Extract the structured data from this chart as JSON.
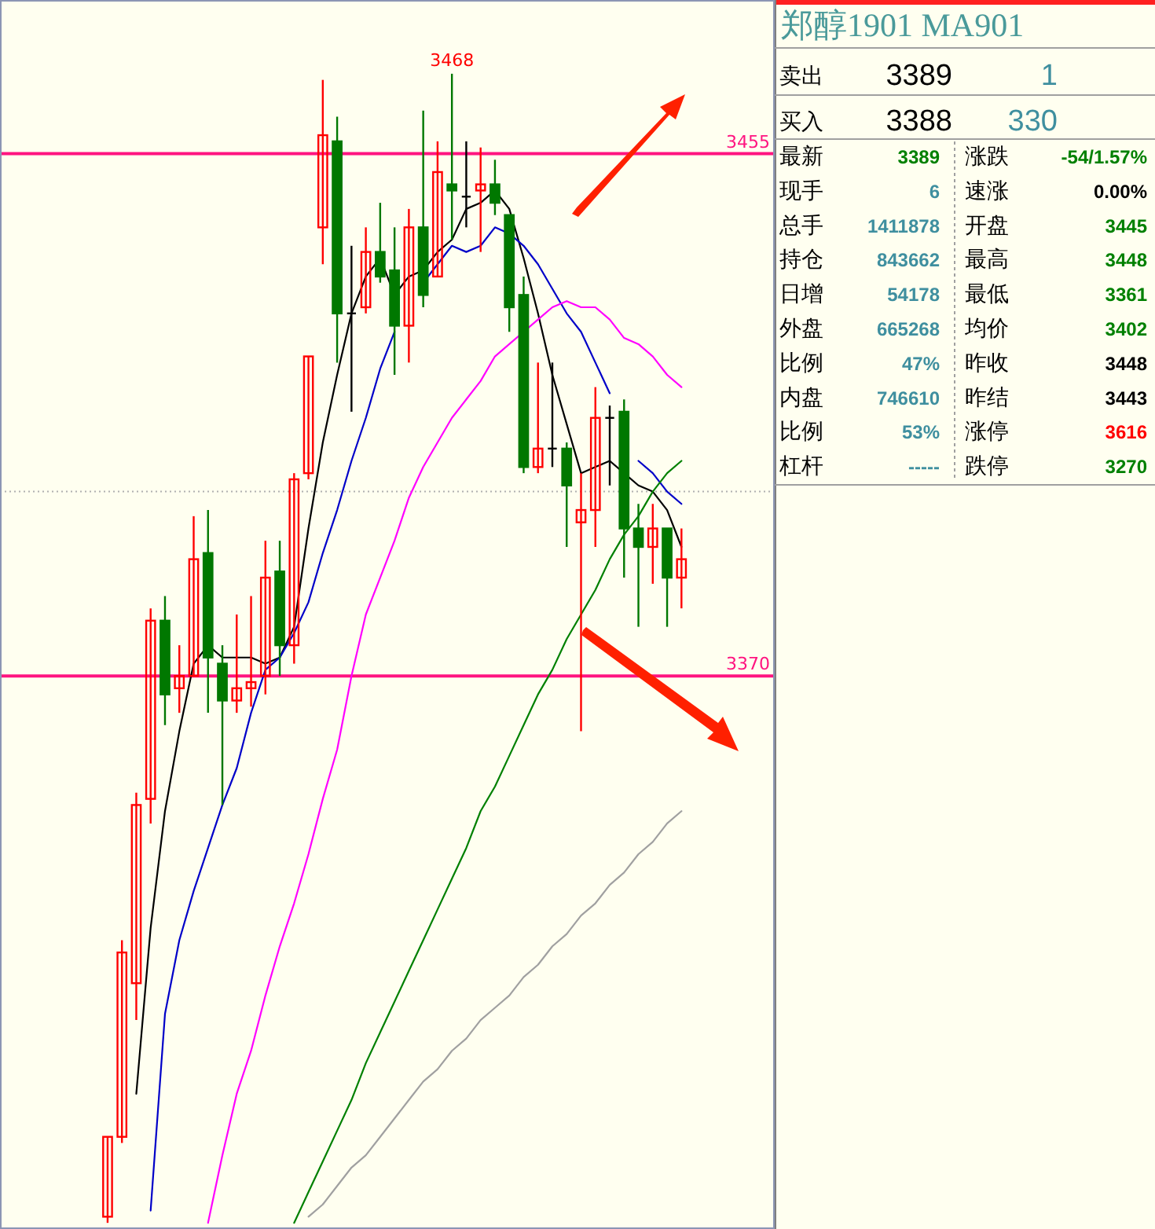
{
  "chart_data": [
    {
      "type": "candlestick",
      "ylim": [
        3280,
        3480
      ],
      "categories": [
        null,
        null,
        null,
        null,
        null,
        null,
        null,
        null,
        null,
        null,
        null,
        null,
        null,
        null,
        null,
        null,
        null,
        null,
        null,
        null,
        null,
        null,
        null,
        null,
        null,
        null,
        null,
        null,
        null,
        null,
        null,
        null,
        null,
        null,
        null,
        null,
        null,
        null,
        null,
        null,
        null
      ],
      "ohlc": [
        [
          3282,
          3295,
          3281,
          3295
        ],
        [
          3295,
          3327,
          3294,
          3325
        ],
        [
          3320,
          3351,
          3314,
          3349
        ],
        [
          3350,
          3381,
          3346,
          3379
        ],
        [
          3379,
          3383,
          3362,
          3367
        ],
        [
          3368,
          3375,
          3364,
          3370
        ],
        [
          3370,
          3396,
          3370,
          3389
        ],
        [
          3390,
          3397,
          3364,
          3373
        ],
        [
          3372,
          3375,
          3349,
          3366
        ],
        [
          3366,
          3380,
          3364,
          3368
        ],
        [
          3368,
          3383,
          3365,
          3369
        ],
        [
          3370,
          3392,
          3367,
          3386
        ],
        [
          3387,
          3392,
          3370,
          3375
        ],
        [
          3375,
          3403,
          3372,
          3402
        ],
        [
          3403,
          3422,
          3402,
          3422
        ],
        [
          3443,
          3467,
          3437,
          3458
        ],
        [
          3457,
          3461,
          3421,
          3429
        ],
        [
          3429,
          3440,
          3413,
          3429
        ],
        [
          3430,
          3443,
          3429,
          3439
        ],
        [
          3439,
          3447,
          3434,
          3435
        ],
        [
          3436,
          3443,
          3419,
          3427
        ],
        [
          3427,
          3446,
          3421,
          3443
        ],
        [
          3443,
          3462,
          3430,
          3432
        ],
        [
          3435,
          3457,
          3435,
          3452
        ],
        [
          3450,
          3468,
          3441,
          3449
        ],
        [
          3448,
          3457,
          3443,
          3448
        ],
        [
          3449,
          3456,
          3439,
          3450
        ],
        [
          3450,
          3454,
          3445,
          3447
        ],
        [
          3445,
          3445,
          3426,
          3430
        ],
        [
          3432,
          3435,
          3403,
          3404
        ],
        [
          3404,
          3421,
          3403,
          3407
        ],
        [
          3407,
          3421,
          3404,
          3407
        ],
        [
          3407,
          3408,
          3391,
          3401
        ],
        [
          3395,
          3403,
          3361,
          3397
        ],
        [
          3397,
          3417,
          3391,
          3412
        ],
        [
          3412,
          3414,
          3401,
          3412
        ],
        [
          3413,
          3415,
          3386,
          3394
        ],
        [
          3394,
          3398,
          3378,
          3391
        ],
        [
          3391,
          3398,
          3385,
          3394
        ],
        [
          3394,
          3394,
          3378,
          3386
        ],
        [
          3386,
          3394,
          3381,
          3389
        ]
      ],
      "colors": [
        "#ff0000",
        "#ff0000",
        "#ff0000",
        "#ff0000",
        "#007800",
        "#ff0000",
        "#ff0000",
        "#007800",
        "#007800",
        "#ff0000",
        "#ff0000",
        "#ff0000",
        "#007800",
        "#ff0000",
        "#ff0000",
        "#ff0000",
        "#007800",
        "#000000",
        "#ff0000",
        "#007800",
        "#007800",
        "#ff0000",
        "#007800",
        "#ff0000",
        "#007800",
        "#000000",
        "#ff0000",
        "#007800",
        "#007800",
        "#007800",
        "#ff0000",
        "#000000",
        "#007800",
        "#ff0000",
        "#ff0000",
        "#000000",
        "#007800",
        "#007800",
        "#ff0000",
        "#007800",
        "#ff0000"
      ],
      "series": [
        {
          "type": "line",
          "color": "#000000",
          "values": [
            null,
            null,
            3302,
            3329,
            3348,
            3361,
            3372,
            3375,
            3373,
            3373,
            3373,
            3372,
            3373,
            3378,
            3394,
            3408,
            3419,
            3429,
            3435,
            3438,
            3432,
            3435,
            3436,
            3439,
            3441,
            3446,
            3447,
            3449,
            3446,
            3438,
            3429,
            3419,
            3411,
            3403,
            3404,
            3405,
            3403,
            3401,
            3400,
            3397,
            3391
          ]
        },
        {
          "type": "line",
          "color": "#0000c8",
          "values": [
            null,
            null,
            null,
            3283,
            3315,
            3327,
            3335,
            3342,
            3349,
            3355,
            3364,
            3371,
            3373,
            3377,
            3382,
            3390,
            3397,
            3405,
            3412,
            3420,
            3426,
            null,
            3434,
            3437,
            3440,
            3439,
            3440,
            3443,
            3442,
            3440,
            3437,
            3433,
            3429,
            3426,
            3421,
            3416,
            null,
            3405,
            3403,
            3400,
            3398
          ]
        },
        {
          "type": "line",
          "color": "#ff00ff",
          "values": [
            null,
            null,
            null,
            null,
            null,
            null,
            null,
            3281,
            3292,
            3302,
            3309,
            3318,
            3326,
            3333,
            3341,
            3350,
            3358,
            3370,
            3380,
            3386,
            3392,
            3399,
            3404,
            3408,
            3412,
            3415,
            3418,
            3422,
            3424,
            3426,
            3428,
            3430,
            3431,
            3430,
            3430,
            3428,
            3425,
            3424,
            3422,
            3419,
            3417
          ]
        },
        {
          "type": "line",
          "color": "#008000",
          "values": [
            null,
            null,
            null,
            null,
            null,
            null,
            null,
            null,
            null,
            null,
            null,
            null,
            null,
            3281,
            3286,
            3291,
            3296,
            3301,
            3307,
            3312,
            3317,
            3322,
            3327,
            3332,
            3337,
            3342,
            3348,
            3352,
            3357,
            3362,
            3367,
            3371,
            3376,
            3380,
            3384,
            3389,
            3393,
            3396,
            3400,
            3403,
            3405
          ]
        },
        {
          "type": "line",
          "color": "#a0a0a0",
          "values": [
            null,
            null,
            null,
            null,
            null,
            null,
            null,
            null,
            null,
            null,
            null,
            null,
            null,
            null,
            3282,
            3284,
            3287,
            3290,
            3292,
            3295,
            3298,
            3301,
            3304,
            3306,
            3309,
            3311,
            3314,
            3316,
            3318,
            3321,
            3323,
            3326,
            3328,
            3331,
            3333,
            3336,
            3338,
            3341,
            3343,
            3346,
            3348
          ]
        }
      ],
      "ref_lines": [
        {
          "axis": "y",
          "value": 3455,
          "label": "3455",
          "color": "#ff1480"
        },
        {
          "axis": "y",
          "value": 3370,
          "label": "3370",
          "color": "#ff1480"
        },
        {
          "axis": "y",
          "value": 3400,
          "label": null,
          "color": "#b0b0b0",
          "line_style": "dotted"
        }
      ],
      "annotations": [
        {
          "text": "3468",
          "y": 3468
        }
      ]
    },
    {
      "type": "other",
      "title": "郑醇1901 MA901",
      "annotations": [
        "卖出",
        "3389",
        "1",
        "买入",
        "3388",
        "330",
        "最新",
        "3389",
        "涨跌",
        "-54/1.57%",
        "现手",
        "6",
        "速涨",
        "0.00%",
        "总手",
        "1411878",
        "开盘",
        "3445",
        "持仓",
        "843662",
        "最高",
        "3448",
        "日增",
        "54178",
        "最低",
        "3361",
        "外盘",
        "665268",
        "均价",
        "3402",
        "比例",
        "47%",
        "昨收",
        "3448",
        "内盘",
        "746610",
        "昨结",
        "3443",
        "比例",
        "53%",
        "涨停",
        "3616",
        "杠杆",
        "-----",
        "跌停",
        "3270"
      ],
      "colors": [
        "#000000",
        "#000000",
        "#3f8f9f",
        "#000000",
        "#000000",
        "#3f8f9f",
        "#000000",
        "#008000",
        "#000000",
        "#008000",
        "#000000",
        "#3f8f9f",
        "#000000",
        "#000000",
        "#000000",
        "#3f8f9f",
        "#000000",
        "#008000",
        "#000000",
        "#3f8f9f",
        "#000000",
        "#008000",
        "#000000",
        "#3f8f9f",
        "#000000",
        "#008000",
        "#000000",
        "#3f8f9f",
        "#000000",
        "#008000",
        "#000000",
        "#3f8f9f",
        "#000000",
        "#000000",
        "#000000",
        "#3f8f9f",
        "#000000",
        "#000000",
        "#000000",
        "#3f8f9f",
        "#000000",
        "#ff0000",
        "#000000",
        "#3f8f9f",
        "#000000",
        "#008000"
      ]
    }
  ]
}
